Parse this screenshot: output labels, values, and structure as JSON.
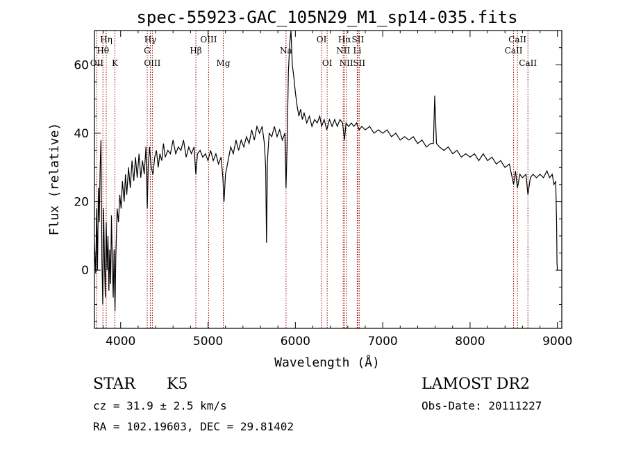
{
  "chart_data": {
    "type": "line",
    "title": "spec-55923-GAC_105N29_M1_sp14-035.fits",
    "xlabel": "Wavelength (Å)",
    "ylabel": "Flux (relative)",
    "xlim": [
      3700,
      9050
    ],
    "ylim": [
      -17,
      70
    ],
    "x_ticks": [
      4000,
      5000,
      6000,
      7000,
      8000,
      9000
    ],
    "y_ticks": [
      0,
      20,
      40,
      60
    ],
    "grid": false,
    "series": [
      {
        "values": [
          [
            3700,
            8
          ],
          [
            3715,
            -1
          ],
          [
            3725,
            18
          ],
          [
            3735,
            0
          ],
          [
            3745,
            24
          ],
          [
            3755,
            14
          ],
          [
            3765,
            30
          ],
          [
            3775,
            38
          ],
          [
            3785,
            4
          ],
          [
            3795,
            -10
          ],
          [
            3805,
            18
          ],
          [
            3815,
            2
          ],
          [
            3825,
            -8
          ],
          [
            3835,
            14
          ],
          [
            3845,
            0
          ],
          [
            3855,
            10
          ],
          [
            3865,
            -6
          ],
          [
            3875,
            6
          ],
          [
            3885,
            -4
          ],
          [
            3895,
            16
          ],
          [
            3905,
            2
          ],
          [
            3915,
            -8
          ],
          [
            3925,
            6
          ],
          [
            3935,
            -12
          ],
          [
            3945,
            4
          ],
          [
            3960,
            18
          ],
          [
            3975,
            14
          ],
          [
            3990,
            22
          ],
          [
            4005,
            18
          ],
          [
            4020,
            26
          ],
          [
            4040,
            20
          ],
          [
            4055,
            28
          ],
          [
            4070,
            22
          ],
          [
            4090,
            30
          ],
          [
            4110,
            24
          ],
          [
            4130,
            32
          ],
          [
            4150,
            26
          ],
          [
            4170,
            33
          ],
          [
            4190,
            27
          ],
          [
            4210,
            34
          ],
          [
            4230,
            27
          ],
          [
            4250,
            32
          ],
          [
            4270,
            28
          ],
          [
            4290,
            36
          ],
          [
            4305,
            18
          ],
          [
            4315,
            30
          ],
          [
            4330,
            36
          ],
          [
            4350,
            30
          ],
          [
            4370,
            28
          ],
          [
            4390,
            33
          ],
          [
            4410,
            35
          ],
          [
            4430,
            30
          ],
          [
            4450,
            34
          ],
          [
            4470,
            32
          ],
          [
            4490,
            37
          ],
          [
            4510,
            33
          ],
          [
            4540,
            35
          ],
          [
            4570,
            34
          ],
          [
            4600,
            38
          ],
          [
            4630,
            34
          ],
          [
            4660,
            36
          ],
          [
            4690,
            35
          ],
          [
            4720,
            38
          ],
          [
            4750,
            33
          ],
          [
            4780,
            36
          ],
          [
            4810,
            34
          ],
          [
            4840,
            36
          ],
          [
            4861,
            28
          ],
          [
            4880,
            34
          ],
          [
            4910,
            35
          ],
          [
            4940,
            33
          ],
          [
            4970,
            34
          ],
          [
            5000,
            32
          ],
          [
            5030,
            35
          ],
          [
            5060,
            32
          ],
          [
            5090,
            34
          ],
          [
            5120,
            31
          ],
          [
            5150,
            33
          ],
          [
            5170,
            27
          ],
          [
            5183,
            20
          ],
          [
            5200,
            28
          ],
          [
            5230,
            32
          ],
          [
            5260,
            36
          ],
          [
            5290,
            34
          ],
          [
            5320,
            38
          ],
          [
            5350,
            35
          ],
          [
            5380,
            38
          ],
          [
            5410,
            36
          ],
          [
            5440,
            39
          ],
          [
            5470,
            37
          ],
          [
            5500,
            41
          ],
          [
            5530,
            38
          ],
          [
            5560,
            42
          ],
          [
            5590,
            40
          ],
          [
            5620,
            42
          ],
          [
            5645,
            37
          ],
          [
            5660,
            30
          ],
          [
            5670,
            8
          ],
          [
            5680,
            32
          ],
          [
            5700,
            40
          ],
          [
            5730,
            39
          ],
          [
            5760,
            42
          ],
          [
            5790,
            39
          ],
          [
            5820,
            41
          ],
          [
            5850,
            38
          ],
          [
            5880,
            40
          ],
          [
            5893,
            24
          ],
          [
            5905,
            36
          ],
          [
            5920,
            58
          ],
          [
            5935,
            66
          ],
          [
            5950,
            70
          ],
          [
            5965,
            60
          ],
          [
            5980,
            57
          ],
          [
            6000,
            52
          ],
          [
            6020,
            48
          ],
          [
            6040,
            45
          ],
          [
            6060,
            47
          ],
          [
            6080,
            44
          ],
          [
            6100,
            46
          ],
          [
            6130,
            43
          ],
          [
            6160,
            45
          ],
          [
            6190,
            42
          ],
          [
            6220,
            44
          ],
          [
            6250,
            43
          ],
          [
            6280,
            45
          ],
          [
            6300,
            42
          ],
          [
            6330,
            44
          ],
          [
            6360,
            41
          ],
          [
            6390,
            44
          ],
          [
            6420,
            42
          ],
          [
            6450,
            44
          ],
          [
            6480,
            42
          ],
          [
            6510,
            44
          ],
          [
            6540,
            43
          ],
          [
            6563,
            38
          ],
          [
            6580,
            43
          ],
          [
            6610,
            42
          ],
          [
            6640,
            43
          ],
          [
            6670,
            42
          ],
          [
            6700,
            43
          ],
          [
            6730,
            41
          ],
          [
            6760,
            42
          ],
          [
            6800,
            41
          ],
          [
            6850,
            42
          ],
          [
            6900,
            40
          ],
          [
            6950,
            41
          ],
          [
            7000,
            40
          ],
          [
            7050,
            41
          ],
          [
            7100,
            39
          ],
          [
            7150,
            40
          ],
          [
            7200,
            38
          ],
          [
            7250,
            39
          ],
          [
            7300,
            38
          ],
          [
            7350,
            39
          ],
          [
            7400,
            37
          ],
          [
            7450,
            38
          ],
          [
            7500,
            36
          ],
          [
            7550,
            37
          ],
          [
            7580,
            37
          ],
          [
            7595,
            51
          ],
          [
            7605,
            44
          ],
          [
            7615,
            37
          ],
          [
            7650,
            36
          ],
          [
            7700,
            35
          ],
          [
            7750,
            36
          ],
          [
            7800,
            34
          ],
          [
            7850,
            35
          ],
          [
            7900,
            33
          ],
          [
            7950,
            34
          ],
          [
            8000,
            33
          ],
          [
            8050,
            34
          ],
          [
            8100,
            32
          ],
          [
            8150,
            34
          ],
          [
            8200,
            32
          ],
          [
            8250,
            33
          ],
          [
            8300,
            31
          ],
          [
            8350,
            32
          ],
          [
            8400,
            30
          ],
          [
            8450,
            31
          ],
          [
            8498,
            25
          ],
          [
            8520,
            29
          ],
          [
            8542,
            24
          ],
          [
            8570,
            28
          ],
          [
            8600,
            27
          ],
          [
            8640,
            28
          ],
          [
            8662,
            22
          ],
          [
            8690,
            27
          ],
          [
            8720,
            28
          ],
          [
            8760,
            27
          ],
          [
            8800,
            28
          ],
          [
            8840,
            27
          ],
          [
            8880,
            29
          ],
          [
            8910,
            27
          ],
          [
            8940,
            28
          ],
          [
            8960,
            25
          ],
          [
            8980,
            26
          ],
          [
            8990,
            14
          ],
          [
            8995,
            2
          ],
          [
            9000,
            0
          ]
        ]
      }
    ],
    "line_markers": [
      {
        "label": "Hη",
        "wl": 3835,
        "row": 0
      },
      {
        "label": "Hθ",
        "wl": 3797,
        "row": 1
      },
      {
        "label": "OII",
        "wl": 3727,
        "row": 2
      },
      {
        "label": "K",
        "wl": 3934,
        "row": 2
      },
      {
        "label": "Hγ",
        "wl": 4340,
        "row": 0
      },
      {
        "label": "G",
        "wl": 4304,
        "row": 1
      },
      {
        "label": "OIII",
        "wl": 4363,
        "row": 2
      },
      {
        "label": "OIII",
        "wl": 5007,
        "row": 0
      },
      {
        "label": "Hβ",
        "wl": 4861,
        "row": 1
      },
      {
        "label": "Mg",
        "wl": 5175,
        "row": 2
      },
      {
        "label": "Na",
        "wl": 5893,
        "row": 1
      },
      {
        "label": "OI",
        "wl": 6300,
        "row": 0
      },
      {
        "label": "OI",
        "wl": 6364,
        "row": 2
      },
      {
        "label": "Hα",
        "wl": 6563,
        "row": 0
      },
      {
        "label": "NII",
        "wl": 6548,
        "row": 1
      },
      {
        "label": "NII",
        "wl": 6583,
        "row": 2
      },
      {
        "label": "SII",
        "wl": 6716,
        "row": 0
      },
      {
        "label": "Li",
        "wl": 6708,
        "row": 1
      },
      {
        "label": "SII",
        "wl": 6731,
        "row": 2
      },
      {
        "label": "CaII",
        "wl": 8542,
        "row": 0
      },
      {
        "label": "CaII",
        "wl": 8498,
        "row": 1
      },
      {
        "label": "CaII",
        "wl": 8662,
        "row": 2
      }
    ],
    "marker_color": "#a00000"
  },
  "info": {
    "object_class": "STAR",
    "subclass": "K5",
    "survey": "LAMOST DR2",
    "velocity": "cz = 31.9 ± 2.5 km/s",
    "obs_date": "Obs-Date: 20111227",
    "coords": "RA = 102.19603, DEC =  29.81402"
  }
}
